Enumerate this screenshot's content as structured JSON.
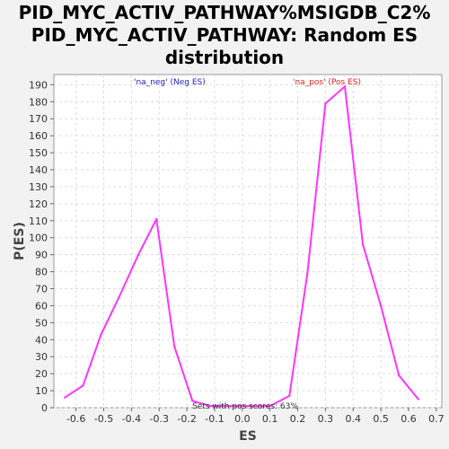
{
  "chart_data": {
    "type": "line",
    "title_lines": [
      "PID_MYC_ACTIV_PATHWAY%MSIGDB_C2%",
      "PID_MYC_ACTIV_PATHWAY: Random ES",
      "distribution"
    ],
    "xlabel": "ES",
    "ylabel": "P(ES)",
    "xlim": [
      -0.68,
      0.72
    ],
    "ylim": [
      0,
      196
    ],
    "xticks": [
      "-0.6",
      "-0.5",
      "-0.4",
      "-0.3",
      "-0.2",
      "-0.1",
      "0.0",
      "0.1",
      "0.2",
      "0.3",
      "0.4",
      "0.5",
      "0.6",
      "0.7"
    ],
    "yticks": [
      "0",
      "10",
      "20",
      "30",
      "40",
      "50",
      "60",
      "70",
      "80",
      "90",
      "100",
      "110",
      "120",
      "130",
      "140",
      "150",
      "160",
      "170",
      "180",
      "190"
    ],
    "grid": true,
    "line_color": "#ff33ff",
    "series": [
      {
        "values": [
          {
            "x": -0.64,
            "y": 6
          },
          {
            "x": -0.575,
            "y": 13
          },
          {
            "x": -0.51,
            "y": 43
          },
          {
            "x": -0.445,
            "y": 65
          },
          {
            "x": -0.375,
            "y": 90
          },
          {
            "x": -0.31,
            "y": 111
          },
          {
            "x": -0.245,
            "y": 36
          },
          {
            "x": -0.18,
            "y": 4
          },
          {
            "x": -0.115,
            "y": 1
          },
          {
            "x": 0.1,
            "y": 1
          },
          {
            "x": 0.17,
            "y": 7
          },
          {
            "x": 0.235,
            "y": 79
          },
          {
            "x": 0.3,
            "y": 179
          },
          {
            "x": 0.37,
            "y": 189
          },
          {
            "x": 0.435,
            "y": 96
          },
          {
            "x": 0.5,
            "y": 60
          },
          {
            "x": 0.565,
            "y": 19
          },
          {
            "x": 0.635,
            "y": 5
          }
        ]
      }
    ],
    "annotations": {
      "neg": {
        "text": "'na_neg' (Neg ES)",
        "color": "#2222cc"
      },
      "pos": {
        "text": "'na_pos' (Pos ES)",
        "color": "#dd2222"
      },
      "footer": "Sets with pos scores: 63%"
    }
  }
}
